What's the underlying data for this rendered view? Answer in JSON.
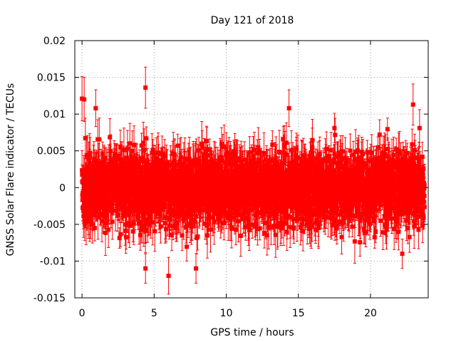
{
  "chart_data": {
    "type": "scatter",
    "title": "Day 121 of 2018",
    "xlabel": "GPS time / hours",
    "ylabel": "GNSS Solar Flare indicator / TECUs",
    "xlim": [
      -0.5,
      24
    ],
    "ylim": [
      -0.015,
      0.02
    ],
    "x_ticks": [
      0,
      5,
      10,
      15,
      20
    ],
    "x_tick_labels": [
      "0",
      "5",
      "10",
      "15",
      "20"
    ],
    "y_ticks": [
      -0.015,
      -0.01,
      -0.005,
      0,
      0.005,
      0.01,
      0.015,
      0.02
    ],
    "y_tick_labels": [
      "-0.015",
      "-0.01",
      "-0.005",
      "0",
      "0.005",
      "0.01",
      "0.015",
      "0.02"
    ],
    "grid": true,
    "series": [
      {
        "name": "solar-flare-indicator",
        "color": "#ff0000",
        "marker": "square",
        "error_bars": true,
        "x_range": [
          0,
          23.75
        ],
        "n_points": 2880,
        "typical_spread": 0.0035,
        "typical_error": 0.0022,
        "notable_points": [
          {
            "x": 0.0,
            "y": 0.0121,
            "err": 0.003
          },
          {
            "x": 0.15,
            "y": 0.012,
            "err": 0.003
          },
          {
            "x": 0.95,
            "y": 0.0108,
            "err": 0.0025
          },
          {
            "x": 4.4,
            "y": 0.0136,
            "err": 0.0028
          },
          {
            "x": 4.4,
            "y": -0.011,
            "err": 0.002
          },
          {
            "x": 6.0,
            "y": -0.012,
            "err": 0.0025
          },
          {
            "x": 7.9,
            "y": -0.011,
            "err": 0.002
          },
          {
            "x": 14.35,
            "y": 0.0108,
            "err": 0.0025
          },
          {
            "x": 17.5,
            "y": 0.0081,
            "err": 0.002
          },
          {
            "x": 22.2,
            "y": -0.009,
            "err": 0.002
          },
          {
            "x": 22.95,
            "y": 0.0113,
            "err": 0.0028
          },
          {
            "x": 23.4,
            "y": 0.0081,
            "err": 0.0025
          }
        ]
      }
    ]
  }
}
